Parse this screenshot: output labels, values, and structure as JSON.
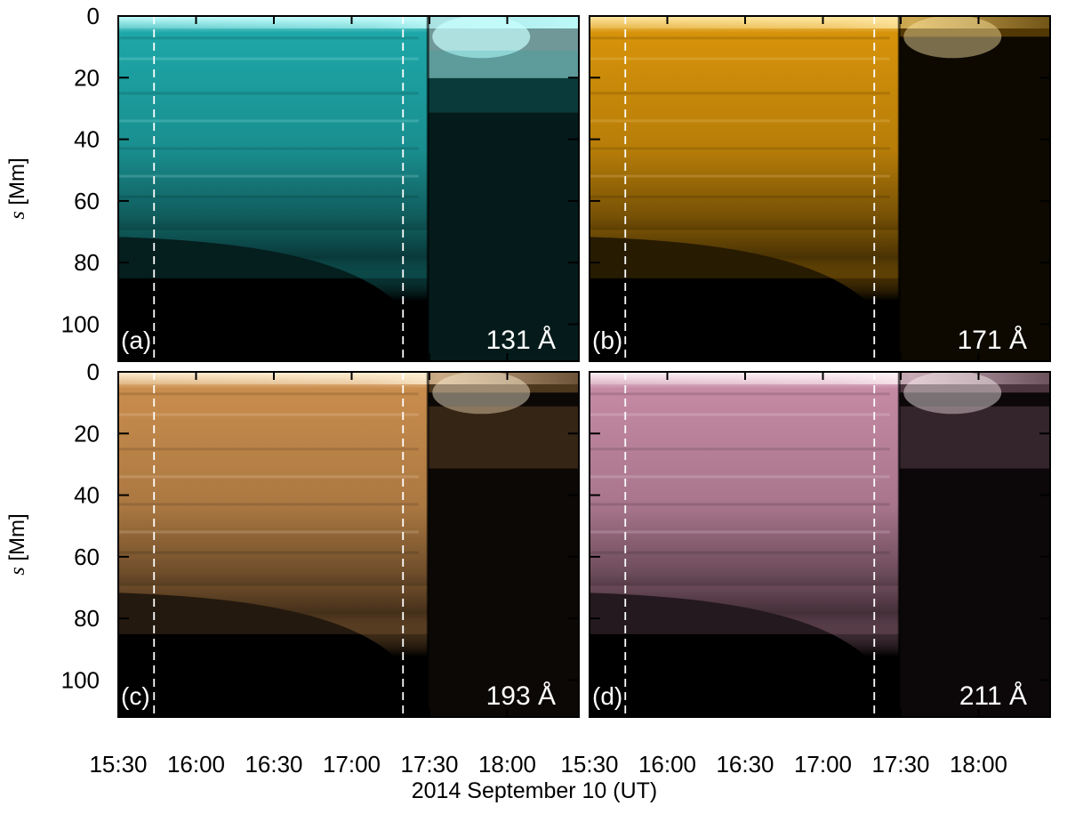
{
  "chart_data": {
    "type": "heatmap",
    "xlabel": "2014 September 10 (UT)",
    "x_tick_labels": [
      "15:30",
      "16:00",
      "16:30",
      "17:00",
      "17:30",
      "18:00"
    ],
    "x_ticks_hours": [
      15.5,
      16.0,
      16.5,
      17.0,
      17.5,
      18.0
    ],
    "xlim_hours": [
      15.5,
      18.46
    ],
    "ylabel_italic": "s",
    "ylabel_rest": " [Mm]",
    "y_tick_labels": [
      "0",
      "20",
      "40",
      "60",
      "80",
      "100"
    ],
    "y_ticks": [
      0,
      20,
      40,
      60,
      80,
      100
    ],
    "ylim": [
      0,
      112
    ],
    "y_inverted": true,
    "reference_lines_hours": [
      15.73,
      17.33
    ],
    "panels": [
      {
        "label": "(a)",
        "channel": "131 Å",
        "colormap": "teal",
        "bright": "#c9ffff",
        "mid": "#1ea7a8",
        "dark": "#000000"
      },
      {
        "label": "(b)",
        "channel": "171 Å",
        "colormap": "gold",
        "bright": "#ffe9a6",
        "mid": "#d7930a",
        "dark": "#000000"
      },
      {
        "label": "(c)",
        "channel": "193 Å",
        "colormap": "copper",
        "bright": "#fff1d6",
        "mid": "#c98d4d",
        "dark": "#000000"
      },
      {
        "label": "(d)",
        "channel": "211 Å",
        "colormap": "mauve",
        "bright": "#fff3f7",
        "mid": "#c58aa4",
        "dark": "#000000"
      }
    ]
  }
}
